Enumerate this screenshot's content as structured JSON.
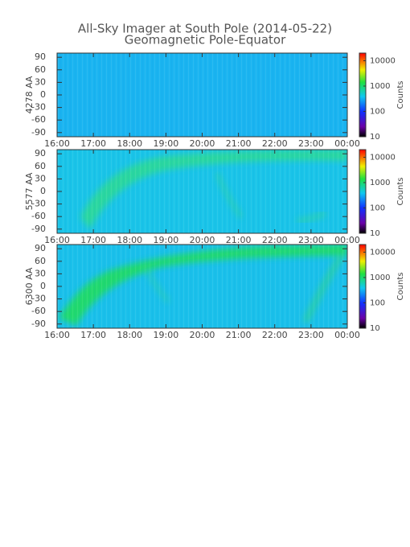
{
  "title": "All-Sky Imager at South Pole (2014-05-22)",
  "subtitle": "Geomagnetic Pole-Equator",
  "chart_data": [
    {
      "type": "heatmap",
      "ylabel": "4278 AA",
      "xlim": [
        16,
        24
      ],
      "xticks": [
        {
          "value": 16,
          "label": "16:00"
        },
        {
          "value": 17,
          "label": "17:00"
        },
        {
          "value": 18,
          "label": "18:00"
        },
        {
          "value": 19,
          "label": "19:00"
        },
        {
          "value": 20,
          "label": "20:00"
        },
        {
          "value": 21,
          "label": "21:00"
        },
        {
          "value": 22,
          "label": "22:00"
        },
        {
          "value": 23,
          "label": "23:00"
        },
        {
          "value": 24,
          "label": "00:00"
        }
      ],
      "ylim": [
        -100,
        100
      ],
      "yticks": [
        90,
        60,
        30,
        0,
        -30,
        -60,
        -90
      ],
      "colorbar": {
        "label": "Counts",
        "scale": "log",
        "lim": [
          10,
          20000
        ],
        "ticks": [
          10,
          100,
          1000,
          10000
        ]
      }
    },
    {
      "type": "heatmap",
      "ylabel": "5577 AA",
      "xlim": [
        16,
        24
      ],
      "xticks": [
        {
          "value": 16,
          "label": "16:00"
        },
        {
          "value": 17,
          "label": "17:00"
        },
        {
          "value": 18,
          "label": "18:00"
        },
        {
          "value": 19,
          "label": "19:00"
        },
        {
          "value": 20,
          "label": "20:00"
        },
        {
          "value": 21,
          "label": "21:00"
        },
        {
          "value": 22,
          "label": "22:00"
        },
        {
          "value": 23,
          "label": "23:00"
        },
        {
          "value": 24,
          "label": "00:00"
        }
      ],
      "ylim": [
        -100,
        100
      ],
      "yticks": [
        90,
        60,
        30,
        0,
        -30,
        -60,
        -90
      ],
      "colorbar": {
        "label": "Counts",
        "scale": "log",
        "lim": [
          10,
          20000
        ],
        "ticks": [
          10,
          100,
          1000,
          10000
        ]
      }
    },
    {
      "type": "heatmap",
      "ylabel": "6300 AA",
      "xlim": [
        16,
        24
      ],
      "xticks": [
        {
          "value": 16,
          "label": "16:00"
        },
        {
          "value": 17,
          "label": "17:00"
        },
        {
          "value": 18,
          "label": "18:00"
        },
        {
          "value": 19,
          "label": "19:00"
        },
        {
          "value": 20,
          "label": "20:00"
        },
        {
          "value": 21,
          "label": "21:00"
        },
        {
          "value": 22,
          "label": "22:00"
        },
        {
          "value": 23,
          "label": "23:00"
        },
        {
          "value": 24,
          "label": "00:00"
        }
      ],
      "ylim": [
        -100,
        100
      ],
      "yticks": [
        90,
        60,
        30,
        0,
        -30,
        -60,
        -90
      ],
      "colorbar": {
        "label": "Counts",
        "scale": "log",
        "lim": [
          10,
          20000
        ],
        "ticks": [
          10,
          100,
          1000,
          10000
        ]
      }
    }
  ]
}
